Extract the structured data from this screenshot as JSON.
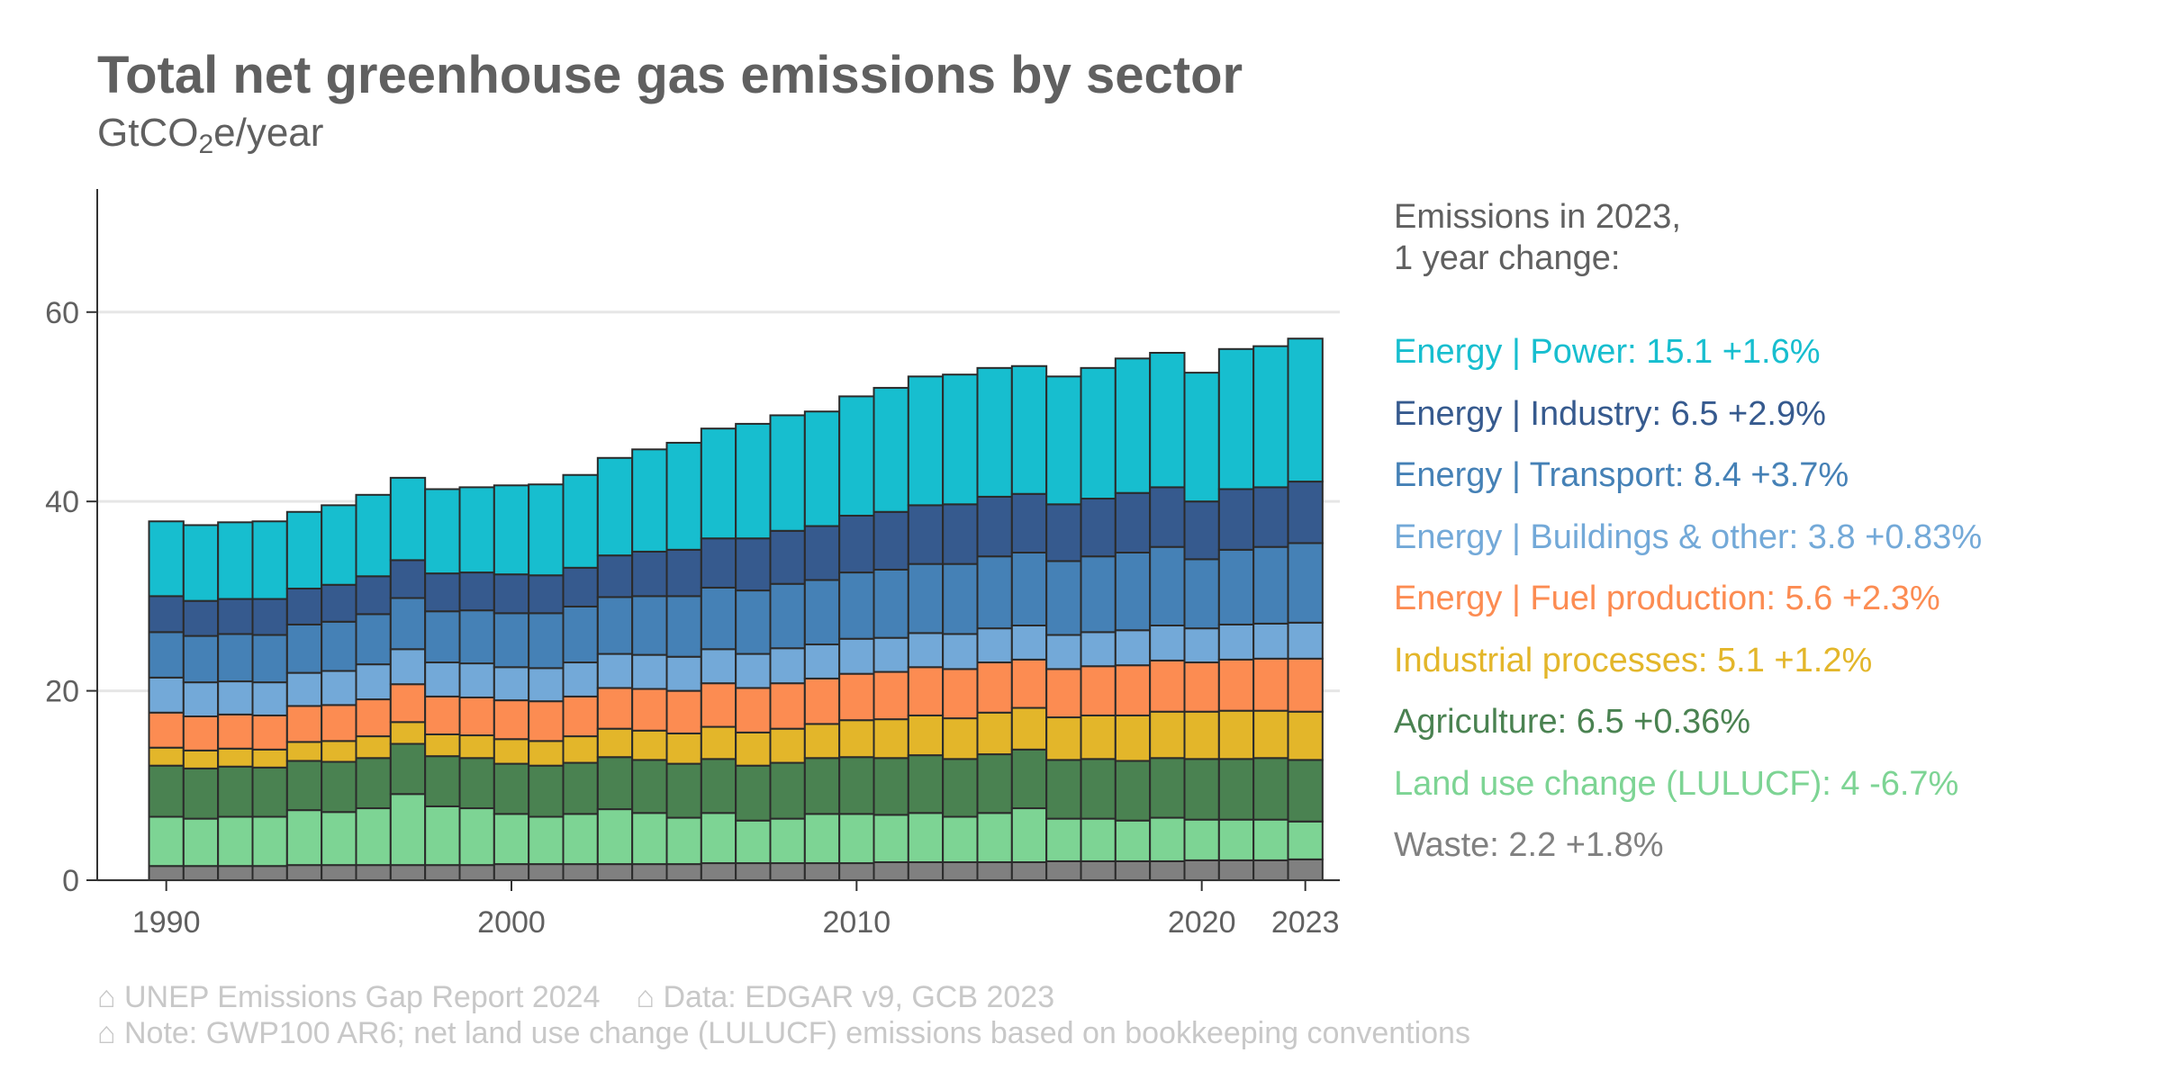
{
  "chart_data": {
    "type": "bar",
    "stacked": true,
    "title": "Total net greenhouse gas emissions by sector",
    "subtitle": {
      "pre": "GtCO",
      "sub": "2",
      "post": "e/year"
    },
    "ylim": [
      0,
      73
    ],
    "xlim": [
      1988,
      2024
    ],
    "y_ticks": [
      0,
      20,
      40,
      60
    ],
    "x_ticks": [
      1990,
      2000,
      2010,
      2020,
      2023
    ],
    "grid": "horizontal",
    "legend_placement": "right",
    "legend_heading": "Emissions in 2023,\n1 year change:",
    "years": [
      1990,
      1991,
      1992,
      1993,
      1994,
      1995,
      1996,
      1997,
      1998,
      1999,
      2000,
      2001,
      2002,
      2003,
      2004,
      2005,
      2006,
      2007,
      2008,
      2009,
      2010,
      2011,
      2012,
      2013,
      2014,
      2015,
      2016,
      2017,
      2018,
      2019,
      2020,
      2021,
      2022,
      2023
    ],
    "series": [
      {
        "name": "Waste",
        "color": "#808080",
        "label": "Waste: 2.2 +1.8%",
        "values": [
          1.5,
          1.5,
          1.5,
          1.5,
          1.6,
          1.6,
          1.6,
          1.6,
          1.6,
          1.6,
          1.7,
          1.7,
          1.7,
          1.7,
          1.7,
          1.7,
          1.8,
          1.8,
          1.8,
          1.8,
          1.8,
          1.9,
          1.9,
          1.9,
          1.9,
          1.9,
          2.0,
          2.0,
          2.0,
          2.0,
          2.1,
          2.1,
          2.1,
          2.2
        ]
      },
      {
        "name": "Land use change (LULUCF)",
        "color": "#7dd494",
        "label": "Land use change (LULUCF): 4 -6.7%",
        "values": [
          5.2,
          5.0,
          5.2,
          5.2,
          5.8,
          5.6,
          6.0,
          7.5,
          6.2,
          6.0,
          5.3,
          5.0,
          5.3,
          5.8,
          5.4,
          4.9,
          5.3,
          4.5,
          4.7,
          5.2,
          5.2,
          5.0,
          5.2,
          4.8,
          5.2,
          5.7,
          4.5,
          4.5,
          4.3,
          4.6,
          4.3,
          4.3,
          4.3,
          4.0
        ]
      },
      {
        "name": "Agriculture",
        "color": "#4a8251",
        "label": "Agriculture: 6.5 +0.36%",
        "values": [
          5.4,
          5.3,
          5.3,
          5.2,
          5.2,
          5.3,
          5.3,
          5.3,
          5.3,
          5.3,
          5.3,
          5.4,
          5.4,
          5.5,
          5.6,
          5.7,
          5.7,
          5.8,
          5.9,
          5.9,
          6.0,
          6.0,
          6.1,
          6.1,
          6.2,
          6.2,
          6.2,
          6.3,
          6.3,
          6.3,
          6.4,
          6.4,
          6.5,
          6.5
        ]
      },
      {
        "name": "Industrial processes",
        "color": "#e3b62a",
        "label": "Industrial processes: 5.1 +1.2%",
        "values": [
          1.9,
          1.9,
          1.9,
          1.9,
          2.0,
          2.2,
          2.3,
          2.3,
          2.3,
          2.4,
          2.6,
          2.6,
          2.8,
          3.0,
          3.1,
          3.2,
          3.4,
          3.5,
          3.6,
          3.6,
          3.9,
          4.1,
          4.2,
          4.3,
          4.4,
          4.4,
          4.5,
          4.6,
          4.8,
          4.9,
          5.0,
          5.1,
          5.0,
          5.1
        ]
      },
      {
        "name": "Energy | Fuel production",
        "color": "#fc8c52",
        "label": "Energy | Fuel production: 5.6 +2.3%",
        "values": [
          3.7,
          3.6,
          3.6,
          3.6,
          3.8,
          3.8,
          3.9,
          4.0,
          4.0,
          4.0,
          4.1,
          4.2,
          4.2,
          4.3,
          4.4,
          4.5,
          4.6,
          4.7,
          4.8,
          4.8,
          4.9,
          5.0,
          5.1,
          5.2,
          5.3,
          5.1,
          5.1,
          5.2,
          5.3,
          5.4,
          5.2,
          5.4,
          5.5,
          5.6
        ]
      },
      {
        "name": "Energy | Buildings & other",
        "color": "#73a9d8",
        "label": "Energy | Buildings & other: 3.8 +0.83%",
        "values": [
          3.7,
          3.6,
          3.5,
          3.5,
          3.5,
          3.6,
          3.7,
          3.7,
          3.6,
          3.6,
          3.5,
          3.5,
          3.6,
          3.6,
          3.6,
          3.6,
          3.6,
          3.6,
          3.7,
          3.6,
          3.7,
          3.6,
          3.6,
          3.7,
          3.6,
          3.6,
          3.6,
          3.6,
          3.7,
          3.7,
          3.6,
          3.7,
          3.7,
          3.8
        ]
      },
      {
        "name": "Energy | Transport",
        "color": "#4581b6",
        "label": "Energy | Transport: 8.4 +3.7%",
        "values": [
          4.8,
          4.9,
          5.0,
          5.0,
          5.1,
          5.2,
          5.3,
          5.4,
          5.4,
          5.6,
          5.7,
          5.8,
          5.9,
          6.0,
          6.2,
          6.4,
          6.5,
          6.7,
          6.8,
          6.8,
          7.0,
          7.2,
          7.3,
          7.4,
          7.6,
          7.7,
          7.8,
          8.0,
          8.2,
          8.3,
          7.3,
          7.9,
          8.1,
          8.4
        ]
      },
      {
        "name": "Energy | Industry",
        "color": "#365a8e",
        "label": "Energy | Industry: 6.5 +2.9%",
        "values": [
          3.8,
          3.7,
          3.7,
          3.8,
          3.8,
          3.9,
          4.0,
          4.0,
          4.0,
          4.0,
          4.1,
          4.0,
          4.1,
          4.4,
          4.7,
          4.9,
          5.2,
          5.5,
          5.6,
          5.7,
          6.0,
          6.1,
          6.2,
          6.3,
          6.3,
          6.2,
          6.0,
          6.1,
          6.3,
          6.3,
          6.1,
          6.4,
          6.3,
          6.5
        ]
      },
      {
        "name": "Energy | Power",
        "color": "#17becf",
        "label": "Energy | Power: 15.1 +1.6%",
        "values": [
          7.9,
          8.0,
          8.1,
          8.2,
          8.1,
          8.4,
          8.6,
          8.7,
          8.9,
          9.0,
          9.4,
          9.6,
          9.8,
          10.3,
          10.8,
          11.3,
          11.6,
          12.1,
          12.2,
          12.1,
          12.6,
          13.1,
          13.6,
          13.7,
          13.6,
          13.5,
          13.5,
          13.8,
          14.2,
          14.2,
          13.6,
          14.8,
          14.9,
          15.1
        ]
      }
    ]
  },
  "footer": {
    "source_report": "⌂ UNEP Emissions Gap Report 2024",
    "source_data": "⌂ Data: EDGAR v9, GCB 2023",
    "note": "⌂ Note: GWP100 AR6; net land use change (LULUCF) emissions based on bookkeeping conventions"
  }
}
